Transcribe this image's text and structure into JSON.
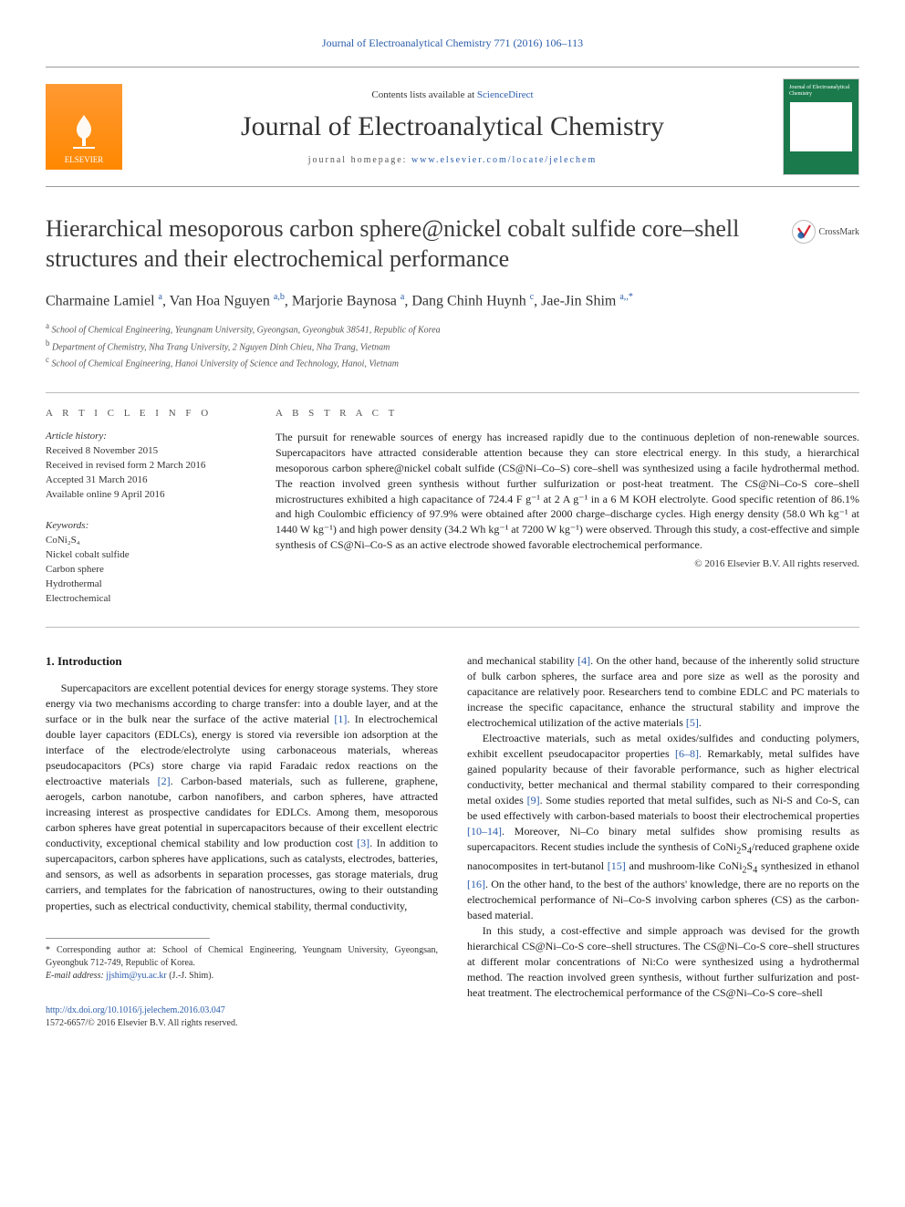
{
  "header_journal_link": "Journal of Electroanalytical Chemistry 771 (2016) 106–113",
  "masthead": {
    "publisher_name": "ELSEVIER",
    "contents_prefix": "Contents lists available at ",
    "contents_link": "ScienceDirect",
    "journal_name": "Journal of Electroanalytical Chemistry",
    "homepage_prefix": "journal homepage: ",
    "homepage_url": "www.elsevier.com/locate/jelechem",
    "cover_text": "Journal of\nElectroanalytical\nChemistry"
  },
  "title": "Hierarchical mesoporous carbon sphere@nickel cobalt sulfide core–shell structures and their electrochemical performance",
  "crossmark": "CrossMark",
  "authors": [
    {
      "name": "Charmaine Lamiel",
      "aff": "a"
    },
    {
      "name": "Van Hoa Nguyen",
      "aff": "a,b"
    },
    {
      "name": "Marjorie Baynosa",
      "aff": "a"
    },
    {
      "name": "Dang Chinh Huynh",
      "aff": "c"
    },
    {
      "name": "Jae-Jin Shim",
      "aff": "a,*"
    }
  ],
  "affiliations": {
    "a": "School of Chemical Engineering, Yeungnam University, Gyeongsan, Gyeongbuk 38541, Republic of Korea",
    "b": "Department of Chemistry, Nha Trang University, 2 Nguyen Dinh Chieu, Nha Trang, Vietnam",
    "c": "School of Chemical Engineering, Hanoi University of Science and Technology, Hanoi, Vietnam"
  },
  "article_info": {
    "heading": "A R T I C L E   I N F O",
    "history_label": "Article history:",
    "history": [
      "Received 8 November 2015",
      "Received in revised form 2 March 2016",
      "Accepted 31 March 2016",
      "Available online 9 April 2016"
    ],
    "keywords_label": "Keywords:",
    "keywords": [
      "CoNi₂S₄",
      "Nickel cobalt sulfide",
      "Carbon sphere",
      "Hydrothermal",
      "Electrochemical"
    ]
  },
  "abstract": {
    "heading": "A B S T R A C T",
    "body": "The pursuit for renewable sources of energy has increased rapidly due to the continuous depletion of non-renewable sources. Supercapacitors have attracted considerable attention because they can store electrical energy. In this study, a hierarchical mesoporous carbon sphere@nickel cobalt sulfide (CS@Ni–Co–S) core–shell was synthesized using a facile hydrothermal method. The reaction involved green synthesis without further sulfurization or post-heat treatment. The CS@Ni–Co-S core–shell microstructures exhibited a high capacitance of 724.4 F g⁻¹ at 2 A g⁻¹ in a 6 M KOH electrolyte. Good specific retention of 86.1% and high Coulombic efficiency of 97.9% were obtained after 2000 charge–discharge cycles. High energy density (58.0 Wh kg⁻¹ at 1440 W kg⁻¹) and high power density (34.2 Wh kg⁻¹ at 7200 W kg⁻¹) were observed. Through this study, a cost-effective and simple synthesis of CS@Ni–Co-S as an active electrode showed favorable electrochemical performance.",
    "copyright": "© 2016 Elsevier B.V. All rights reserved."
  },
  "intro": {
    "heading": "1. Introduction",
    "left_html": "Supercapacitors are excellent potential devices for energy storage systems. They store energy via two mechanisms according to charge transfer: into a double layer, and at the surface or in the bulk near the surface of the active material <a class=\"ref\" data-name=\"ref-1-link\" data-interactable=\"true\">[1]</a>. In electrochemical double layer capacitors (EDLCs), energy is stored via reversible ion adsorption at the interface of the electrode/electrolyte using carbonaceous materials, whereas pseudocapacitors (PCs) store charge via rapid Faradaic redox reactions on the electroactive materials <a class=\"ref\" data-name=\"ref-2-link\" data-interactable=\"true\">[2]</a>. Carbon-based materials, such as fullerene, graphene, aerogels, carbon nanotube, carbon nanofibers, and carbon spheres, have attracted increasing interest as prospective candidates for EDLCs. Among them, mesoporous carbon spheres have great potential in supercapacitors because of their excellent electric conductivity, exceptional chemical stability and low production cost <a class=\"ref\" data-name=\"ref-3-link\" data-interactable=\"true\">[3]</a>. In addition to supercapacitors, carbon spheres have applications, such as catalysts, electrodes, batteries, and sensors, as well as adsorbents in separation processes, gas storage materials, drug carriers, and templates for the fabrication of nanostructures, owing to their outstanding properties, such as electrical conductivity, chemical stability, thermal conductivity,",
    "right_p1_html": "and mechanical stability <a class=\"ref\" data-name=\"ref-4-link\" data-interactable=\"true\">[4]</a>. On the other hand, because of the inherently solid structure of bulk carbon spheres, the surface area and pore size as well as the porosity and capacitance are relatively poor. Researchers tend to combine EDLC and PC materials to increase the specific capacitance, enhance the structural stability and improve the electrochemical utilization of the active materials <a class=\"ref\" data-name=\"ref-5-link\" data-interactable=\"true\">[5]</a>.",
    "right_p2_html": "Electroactive materials, such as metal oxides/sulfides and conducting polymers, exhibit excellent pseudocapacitor properties <a class=\"ref\" data-name=\"ref-6-8-link\" data-interactable=\"true\">[6–8]</a>. Remarkably, metal sulfides have gained popularity because of their favorable performance, such as higher electrical conductivity, better mechanical and thermal stability compared to their corresponding metal oxides <a class=\"ref\" data-name=\"ref-9-link\" data-interactable=\"true\">[9]</a>. Some studies reported that metal sulfides, such as Ni-S and Co-S, can be used effectively with carbon-based materials to boost their electrochemical properties <a class=\"ref\" data-name=\"ref-10-14-link\" data-interactable=\"true\">[10–14]</a>. Moreover, Ni–Co binary metal sulfides show promising results as supercapacitors. Recent studies include the synthesis of CoNi<sub>2</sub>S<sub>4</sub>/reduced graphene oxide nanocomposites in tert-butanol <a class=\"ref\" data-name=\"ref-15-link\" data-interactable=\"true\">[15]</a> and mushroom-like CoNi<sub>2</sub>S<sub>4</sub> synthesized in ethanol <a class=\"ref\" data-name=\"ref-16-link\" data-interactable=\"true\">[16]</a>. On the other hand, to the best of the authors' knowledge, there are no reports on the electrochemical performance of Ni–Co-S involving carbon spheres (CS) as the carbon-based material.",
    "right_p3_html": "In this study, a cost-effective and simple approach was devised for the growth hierarchical CS@Ni–Co-S core–shell structures. The CS@Ni–Co-S core–shell structures at different molar concentrations of Ni:Co were synthesized using a hydrothermal method. The reaction involved green synthesis, without further sulfurization and post-heat treatment. The electrochemical performance of the CS@Ni–Co-S core–shell"
  },
  "footnote": {
    "correspond": "* Corresponding author at: School of Chemical Engineering, Yeungnam University, Gyeongsan, Gyeongbuk 712-749, Republic of Korea.",
    "email_label": "E-mail address:",
    "email": "jjshim@yu.ac.kr",
    "email_paren": "(J.-J. Shim)."
  },
  "footer": {
    "doi": "http://dx.doi.org/10.1016/j.jelechem.2016.03.047",
    "issn": "1572-6657/© 2016 Elsevier B.V. All rights reserved."
  },
  "colors": {
    "link": "#2a5caa",
    "elsevier_bg": "#ff8800",
    "cover_bg": "#1a7a4c",
    "rule": "#bbbbbb"
  }
}
